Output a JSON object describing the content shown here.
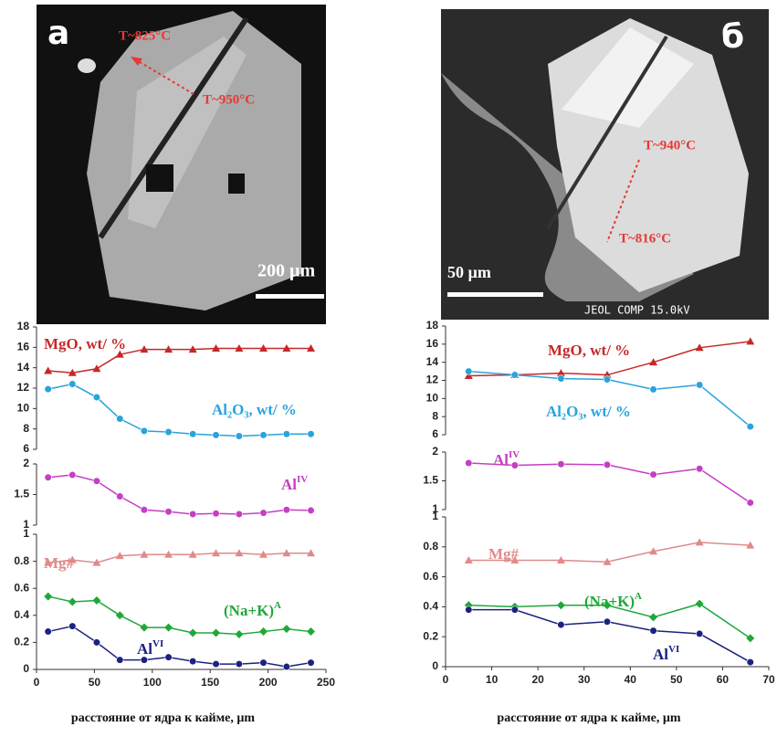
{
  "panels": [
    {
      "label": "а",
      "image": {
        "annotations": [
          "T~825°C",
          "T~950°C"
        ],
        "scale_bar": "200 µm"
      },
      "x": [
        10,
        31,
        52,
        72,
        93,
        114,
        135,
        155,
        175,
        196,
        216,
        237
      ],
      "xlim": [
        0,
        250
      ],
      "xticks": [
        0,
        50,
        100,
        150,
        200,
        250
      ],
      "xlabel": "расстояние от ядра к кайме,  µm",
      "subplots": [
        {
          "ylim": [
            6,
            18
          ],
          "yticks": [
            6,
            8,
            10,
            12,
            14,
            16,
            18
          ],
          "series": [
            {
              "name": "MgO, wt/ %",
              "color": "#c62828",
              "marker": "triangle",
              "values": [
                13.7,
                13.5,
                13.9,
                15.3,
                15.8,
                15.8,
                15.8,
                15.9,
                15.9,
                15.9,
                15.9,
                15.9
              ]
            },
            {
              "name": "Al₂O₃, wt/ %",
              "color": "#29a3dc",
              "marker": "circle",
              "values": [
                11.9,
                12.4,
                11.1,
                9.0,
                7.8,
                7.7,
                7.5,
                7.4,
                7.3,
                7.4,
                7.5,
                7.5
              ]
            }
          ]
        },
        {
          "ylim": [
            1,
            2
          ],
          "yticks": [
            1,
            1.5,
            2
          ],
          "series": [
            {
              "name": "Al",
              "sup": "IV",
              "color": "#c43fc4",
              "marker": "circle",
              "values": [
                1.78,
                1.82,
                1.72,
                1.47,
                1.25,
                1.22,
                1.18,
                1.19,
                1.18,
                1.2,
                1.25,
                1.24
              ]
            }
          ]
        },
        {
          "ylim": [
            0,
            1
          ],
          "yticks": [
            0,
            0.2,
            0.4,
            0.6,
            0.8,
            1
          ],
          "series": [
            {
              "name": "Mg#",
              "color": "#e08a8a",
              "marker": "triangle",
              "values": [
                0.79,
                0.81,
                0.79,
                0.84,
                0.85,
                0.85,
                0.85,
                0.86,
                0.86,
                0.85,
                0.86,
                0.86
              ]
            },
            {
              "name": "(Na+K)",
              "sup": "A",
              "color": "#1fa83a",
              "marker": "diamond",
              "values": [
                0.54,
                0.5,
                0.51,
                0.4,
                0.31,
                0.31,
                0.27,
                0.27,
                0.26,
                0.28,
                0.3,
                0.28
              ]
            },
            {
              "name": "Al",
              "sup": "VI",
              "color": "#1a237e",
              "marker": "circle",
              "values": [
                0.28,
                0.32,
                0.2,
                0.07,
                0.07,
                0.09,
                0.06,
                0.04,
                0.04,
                0.05,
                0.02,
                0.05
              ]
            }
          ]
        }
      ]
    },
    {
      "label": "б",
      "image": {
        "annotations": [
          "T~940°C",
          "T~816°C"
        ],
        "scale_bar": "50 µm",
        "caption": "JEOL COMP  15.0kV"
      },
      "x": [
        5,
        15,
        25,
        35,
        45,
        55,
        66
      ],
      "xlim": [
        0,
        70
      ],
      "xticks": [
        0,
        10,
        20,
        30,
        40,
        50,
        60,
        70
      ],
      "xlabel": "расстояние от ядра к кайме,  µm",
      "subplots": [
        {
          "ylim": [
            6,
            18
          ],
          "yticks": [
            6,
            8,
            10,
            12,
            14,
            16,
            18
          ],
          "series": [
            {
              "name": "MgO, wt/ %",
              "color": "#c62828",
              "marker": "triangle",
              "values": [
                12.5,
                12.6,
                12.8,
                12.6,
                14.0,
                15.6,
                16.3
              ]
            },
            {
              "name": "Al₂O₃, wt/ %",
              "color": "#29a3dc",
              "marker": "circle",
              "values": [
                13.0,
                12.6,
                12.2,
                12.1,
                11.0,
                11.5,
                6.9
              ]
            }
          ]
        },
        {
          "ylim": [
            1,
            2
          ],
          "yticks": [
            1,
            1.5,
            2
          ],
          "series": [
            {
              "name": "Al",
              "sup": "IV",
              "color": "#c43fc4",
              "marker": "circle",
              "values": [
                1.81,
                1.77,
                1.79,
                1.78,
                1.61,
                1.71,
                1.12
              ]
            }
          ]
        },
        {
          "ylim": [
            0,
            1
          ],
          "yticks": [
            0,
            0.2,
            0.4,
            0.6,
            0.8,
            1
          ],
          "series": [
            {
              "name": "Mg#",
              "color": "#e08a8a",
              "marker": "triangle",
              "values": [
                0.71,
                0.71,
                0.71,
                0.7,
                0.77,
                0.83,
                0.81
              ]
            },
            {
              "name": "(Na+K)",
              "sup": "A",
              "color": "#1fa83a",
              "marker": "diamond",
              "values": [
                0.41,
                0.4,
                0.41,
                0.41,
                0.33,
                0.42,
                0.19
              ]
            },
            {
              "name": "Al",
              "sup": "VI",
              "color": "#1a237e",
              "marker": "circle",
              "values": [
                0.38,
                0.38,
                0.28,
                0.3,
                0.24,
                0.22,
                0.03
              ]
            }
          ]
        }
      ]
    }
  ]
}
